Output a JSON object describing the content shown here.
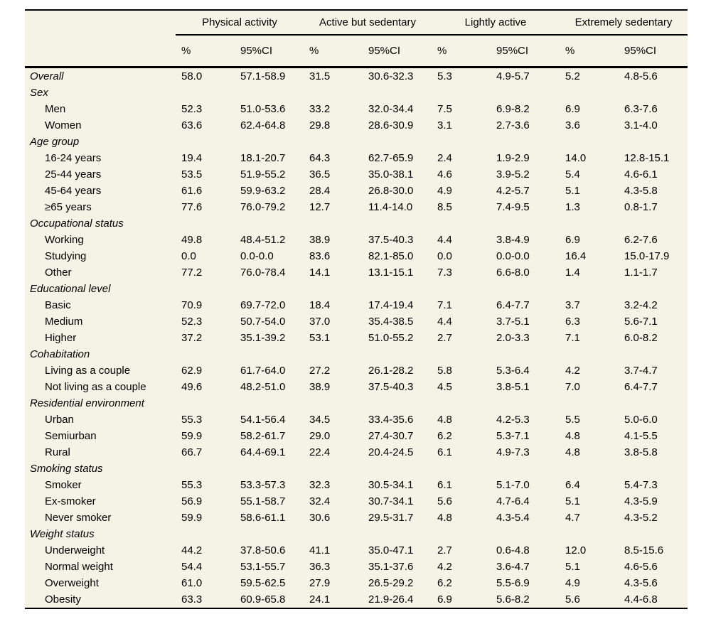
{
  "colors": {
    "table_background": "#f5f2e6",
    "rule_color": "#000000",
    "text_color": "#000000"
  },
  "table": {
    "column_groups": [
      {
        "label": "Physical activity"
      },
      {
        "label": "Active but sedentary"
      },
      {
        "label": "Lightly active"
      },
      {
        "label": "Extremely sedentary"
      }
    ],
    "sub_headers": [
      "%",
      "95%CI"
    ],
    "rows": [
      {
        "label": "Overall",
        "italic": true,
        "indent": false,
        "values": [
          "58.0",
          "57.1-58.9",
          "31.5",
          "30.6-32.3",
          "5.3",
          "4.9-5.7",
          "5.2",
          "4.8-5.6"
        ]
      },
      {
        "label": "Sex",
        "italic": true,
        "indent": false,
        "values": []
      },
      {
        "label": "Men",
        "italic": false,
        "indent": true,
        "values": [
          "52.3",
          "51.0-53.6",
          "33.2",
          "32.0-34.4",
          "7.5",
          "6.9-8.2",
          "6.9",
          "6.3-7.6"
        ]
      },
      {
        "label": "Women",
        "italic": false,
        "indent": true,
        "values": [
          "63.6",
          "62.4-64.8",
          "29.8",
          "28.6-30.9",
          "3.1",
          "2.7-3.6",
          "3.6",
          "3.1-4.0"
        ]
      },
      {
        "label": "Age group",
        "italic": true,
        "indent": false,
        "values": []
      },
      {
        "label": "16-24 years",
        "italic": false,
        "indent": true,
        "values": [
          "19.4",
          "18.1-20.7",
          "64.3",
          "62.7-65.9",
          "2.4",
          "1.9-2.9",
          "14.0",
          "12.8-15.1"
        ]
      },
      {
        "label": "25-44 years",
        "italic": false,
        "indent": true,
        "values": [
          "53.5",
          "51.9-55.2",
          "36.5",
          "35.0-38.1",
          "4.6",
          "3.9-5.2",
          "5.4",
          "4.6-6.1"
        ]
      },
      {
        "label": "45-64 years",
        "italic": false,
        "indent": true,
        "values": [
          "61.6",
          "59.9-63.2",
          "28.4",
          "26.8-30.0",
          "4.9",
          "4.2-5.7",
          "5.1",
          "4.3-5.8"
        ]
      },
      {
        "label": "≥65 years",
        "italic": false,
        "indent": true,
        "values": [
          "77.6",
          "76.0-79.2",
          "12.7",
          "11.4-14.0",
          "8.5",
          "7.4-9.5",
          "1.3",
          "0.8-1.7"
        ]
      },
      {
        "label": "Occupational status",
        "italic": true,
        "indent": false,
        "values": []
      },
      {
        "label": "Working",
        "italic": false,
        "indent": true,
        "values": [
          "49.8",
          "48.4-51.2",
          "38.9",
          "37.5-40.3",
          "4.4",
          "3.8-4.9",
          "6.9",
          "6.2-7.6"
        ]
      },
      {
        "label": "Studying",
        "italic": false,
        "indent": true,
        "values": [
          "0.0",
          "0.0-0.0",
          "83.6",
          "82.1-85.0",
          "0.0",
          "0.0-0.0",
          "16.4",
          "15.0-17.9"
        ]
      },
      {
        "label": "Other",
        "italic": false,
        "indent": true,
        "values": [
          "77.2",
          "76.0-78.4",
          "14.1",
          "13.1-15.1",
          "7.3",
          "6.6-8.0",
          "1.4",
          "1.1-1.7"
        ]
      },
      {
        "label": "Educational level",
        "italic": true,
        "indent": false,
        "values": []
      },
      {
        "label": "Basic",
        "italic": false,
        "indent": true,
        "values": [
          "70.9",
          "69.7-72.0",
          "18.4",
          "17.4-19.4",
          "7.1",
          "6.4-7.7",
          "3.7",
          "3.2-4.2"
        ]
      },
      {
        "label": "Medium",
        "italic": false,
        "indent": true,
        "values": [
          "52.3",
          "50.7-54.0",
          "37.0",
          "35.4-38.5",
          "4.4",
          "3.7-5.1",
          "6.3",
          "5.6-7.1"
        ]
      },
      {
        "label": "Higher",
        "italic": false,
        "indent": true,
        "values": [
          "37.2",
          "35.1-39.2",
          "53.1",
          "51.0-55.2",
          "2.7",
          "2.0-3.3",
          "7.1",
          "6.0-8.2"
        ]
      },
      {
        "label": "Cohabitation",
        "italic": true,
        "indent": false,
        "values": []
      },
      {
        "label": "Living as a couple",
        "italic": false,
        "indent": true,
        "values": [
          "62.9",
          "61.7-64.0",
          "27.2",
          "26.1-28.2",
          "5.8",
          "5.3-6.4",
          "4.2",
          "3.7-4.7"
        ]
      },
      {
        "label": "Not living as a couple",
        "italic": false,
        "indent": true,
        "values": [
          "49.6",
          "48.2-51.0",
          "38.9",
          "37.5-40.3",
          "4.5",
          "3.8-5.1",
          "7.0",
          "6.4-7.7"
        ]
      },
      {
        "label": "Residential environment",
        "italic": true,
        "indent": false,
        "values": []
      },
      {
        "label": "Urban",
        "italic": false,
        "indent": true,
        "values": [
          "55.3",
          "54.1-56.4",
          "34.5",
          "33.4-35.6",
          "4.8",
          "4.2-5.3",
          "5.5",
          "5.0-6.0"
        ]
      },
      {
        "label": "Semiurban",
        "italic": false,
        "indent": true,
        "values": [
          "59.9",
          "58.2-61.7",
          "29.0",
          "27.4-30.7",
          "6.2",
          "5.3-7.1",
          "4.8",
          "4.1-5.5"
        ]
      },
      {
        "label": "Rural",
        "italic": false,
        "indent": true,
        "values": [
          "66.7",
          "64.4-69.1",
          "22.4",
          "20.4-24.5",
          "6.1",
          "4.9-7.3",
          "4.8",
          "3.8-5.8"
        ]
      },
      {
        "label": "Smoking status",
        "italic": true,
        "indent": false,
        "values": []
      },
      {
        "label": "Smoker",
        "italic": false,
        "indent": true,
        "values": [
          "55.3",
          "53.3-57.3",
          "32.3",
          "30.5-34.1",
          "6.1",
          "5.1-7.0",
          "6.4",
          "5.4-7.3"
        ]
      },
      {
        "label": "Ex-smoker",
        "italic": false,
        "indent": true,
        "values": [
          "56.9",
          "55.1-58.7",
          "32.4",
          "30.7-34.1",
          "5.6",
          "4.7-6.4",
          "5.1",
          "4.3-5.9"
        ]
      },
      {
        "label": "Never smoker",
        "italic": false,
        "indent": true,
        "values": [
          "59.9",
          "58.6-61.1",
          "30.6",
          "29.5-31.7",
          "4.8",
          "4.3-5.4",
          "4.7",
          "4.3-5.2"
        ]
      },
      {
        "label": "Weight status",
        "italic": true,
        "indent": false,
        "values": []
      },
      {
        "label": "Underweight",
        "italic": false,
        "indent": true,
        "values": [
          "44.2",
          "37.8-50.6",
          "41.1",
          "35.0-47.1",
          "2.7",
          "0.6-4.8",
          "12.0",
          "8.5-15.6"
        ]
      },
      {
        "label": "Normal weight",
        "italic": false,
        "indent": true,
        "values": [
          "54.4",
          "53.1-55.7",
          "36.3",
          "35.1-37.6",
          "4.2",
          "3.6-4.7",
          "5.1",
          "4.6-5.6"
        ]
      },
      {
        "label": "Overweight",
        "italic": false,
        "indent": true,
        "values": [
          "61.0",
          "59.5-62.5",
          "27.9",
          "26.5-29.2",
          "6.2",
          "5.5-6.9",
          "4.9",
          "4.3-5.6"
        ]
      },
      {
        "label": "Obesity",
        "italic": false,
        "indent": true,
        "values": [
          "63.3",
          "60.9-65.8",
          "24.1",
          "21.9-26.4",
          "6.9",
          "5.6-8.2",
          "5.6",
          "4.4-6.8"
        ]
      }
    ]
  }
}
